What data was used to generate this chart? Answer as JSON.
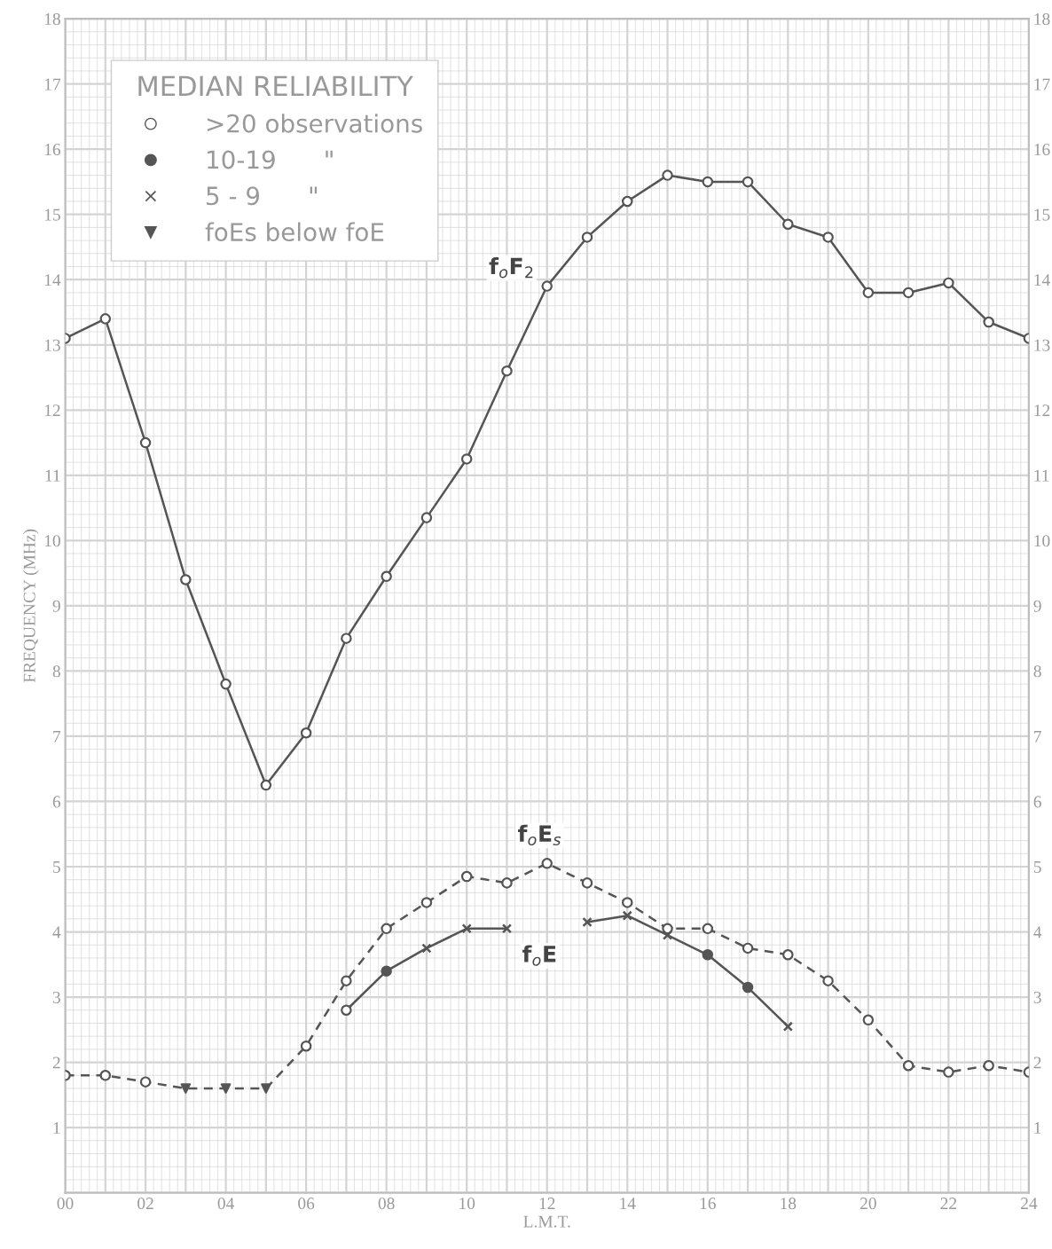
{
  "chart_data": {
    "type": "line",
    "xlabel": "L.M.T.",
    "ylabel": "FREQUENCY (MHz)",
    "xlim": [
      0,
      24
    ],
    "ylim": [
      0,
      18
    ],
    "y2lim": [
      0,
      18
    ],
    "xticks": [
      {
        "value": 0,
        "label": "00"
      },
      {
        "value": 1,
        "label": null
      },
      {
        "value": 2,
        "label": "02"
      },
      {
        "value": 3,
        "label": null
      },
      {
        "value": 4,
        "label": "04"
      },
      {
        "value": 5,
        "label": null
      },
      {
        "value": 6,
        "label": "06"
      },
      {
        "value": 7,
        "label": null
      },
      {
        "value": 8,
        "label": "08"
      },
      {
        "value": 9,
        "label": null
      },
      {
        "value": 10,
        "label": "10"
      },
      {
        "value": 11,
        "label": null
      },
      {
        "value": 12,
        "label": "12"
      },
      {
        "value": 13,
        "label": null
      },
      {
        "value": 14,
        "label": "14"
      },
      {
        "value": 15,
        "label": null
      },
      {
        "value": 16,
        "label": "16"
      },
      {
        "value": 17,
        "label": null
      },
      {
        "value": 18,
        "label": "18"
      },
      {
        "value": 19,
        "label": null
      },
      {
        "value": 20,
        "label": "20"
      },
      {
        "value": 21,
        "label": null
      },
      {
        "value": 22,
        "label": "22"
      },
      {
        "value": 23,
        "label": null
      },
      {
        "value": 24,
        "label": "24"
      }
    ],
    "yticks": [
      1,
      2,
      3,
      4,
      5,
      6,
      7,
      8,
      9,
      10,
      11,
      12,
      13,
      14,
      15,
      16,
      17,
      18
    ],
    "y2ticks": [
      1,
      2,
      3,
      4,
      5,
      6,
      7,
      8,
      9,
      10,
      11,
      12,
      13,
      14,
      15,
      16,
      17,
      18
    ],
    "grid": true,
    "legend": "top left",
    "legend_title": "MEDIAN RELIABILITY",
    "series": [
      {
        "name": "f$_{o}$F$_{2}$",
        "color": "#555555",
        "line_style": "solid",
        "marker": "none",
        "x": [
          0,
          1,
          2,
          3,
          4,
          5,
          6,
          7,
          8,
          9,
          10,
          11,
          12,
          13,
          14,
          15,
          16,
          17,
          18,
          19,
          20,
          21,
          22,
          23,
          24
        ],
        "values": [
          13.1,
          13.4,
          11.5,
          9.4,
          7.8,
          6.25,
          7.05,
          8.5,
          9.45,
          10.35,
          11.25,
          12.6,
          13.9,
          14.65,
          15.2,
          15.6,
          15.5,
          15.5,
          14.85,
          14.65,
          13.8,
          13.8,
          13.95,
          13.35,
          13.1
        ]
      },
      {
        "name": "f$_{o}$E$_{s}$",
        "color": "#555555",
        "line_style": "dashed",
        "marker": "none",
        "x": [
          0,
          1,
          2,
          3,
          4,
          5,
          6,
          7,
          8,
          9,
          10,
          11,
          12,
          13,
          14,
          15,
          16,
          17,
          18,
          19,
          20,
          21,
          22,
          23,
          24
        ],
        "values": [
          1.8,
          1.8,
          1.7,
          1.6,
          1.6,
          1.6,
          2.25,
          3.25,
          4.05,
          4.45,
          4.85,
          4.75,
          5.05,
          4.75,
          4.45,
          4.05,
          4.05,
          3.75,
          3.65,
          3.25,
          2.65,
          1.95,
          1.85,
          1.95,
          1.85
        ]
      },
      {
        "name": "f$_{o}$E",
        "color": "#555555",
        "line_style": "solid",
        "marker": "none",
        "x": [
          7,
          8,
          9,
          10,
          11,
          12,
          13,
          14,
          15,
          16,
          17,
          18
        ],
        "values": [
          2.8,
          3.4,
          3.75,
          4.05,
          4.05,
          null,
          4.15,
          4.25,
          3.95,
          3.65,
          3.15,
          2.55
        ]
      },
      {
        "type": "scatter",
        "name": ">20 observations",
        "color": "#ffffff",
        "marker": "circle",
        "x": [
          0,
          1,
          2,
          3,
          4,
          5,
          6,
          7,
          8,
          9,
          10,
          11,
          12,
          13,
          14,
          15,
          16,
          17,
          18,
          19,
          20,
          21,
          22,
          23,
          24,
          0,
          1,
          2,
          6,
          7,
          8,
          9,
          10,
          11,
          12,
          13,
          14,
          15,
          16,
          17,
          18,
          19,
          20,
          21,
          22,
          23,
          24,
          7
        ],
        "values": [
          13.1,
          13.4,
          11.5,
          9.4,
          7.8,
          6.25,
          7.05,
          8.5,
          9.45,
          10.35,
          11.25,
          12.6,
          13.9,
          14.65,
          15.2,
          15.6,
          15.5,
          15.5,
          14.85,
          14.65,
          13.8,
          13.8,
          13.95,
          13.35,
          13.1,
          1.8,
          1.8,
          1.7,
          2.25,
          3.25,
          4.05,
          4.45,
          4.85,
          4.75,
          5.05,
          4.75,
          4.45,
          4.05,
          4.05,
          3.75,
          3.65,
          3.25,
          2.65,
          1.95,
          1.85,
          1.95,
          1.85,
          2.8
        ]
      },
      {
        "type": "scatter",
        "name": "10-19      \"",
        "color": "#555555",
        "marker": "circle",
        "x": [
          8,
          16,
          17
        ],
        "values": [
          3.4,
          3.65,
          3.15
        ]
      },
      {
        "type": "scatter",
        "name": "5 - 9      \"",
        "color": "#555555",
        "marker": "cross",
        "x": [
          9,
          10,
          11,
          13,
          14,
          15,
          18
        ],
        "values": [
          3.75,
          4.05,
          4.05,
          4.15,
          4.25,
          3.95,
          2.55
        ]
      },
      {
        "type": "scatter",
        "name": "foEs below foE",
        "color": "#555555",
        "marker": "triangle",
        "x": [
          3,
          4,
          5
        ],
        "values": [
          1.6,
          1.6,
          1.6
        ]
      }
    ]
  }
}
